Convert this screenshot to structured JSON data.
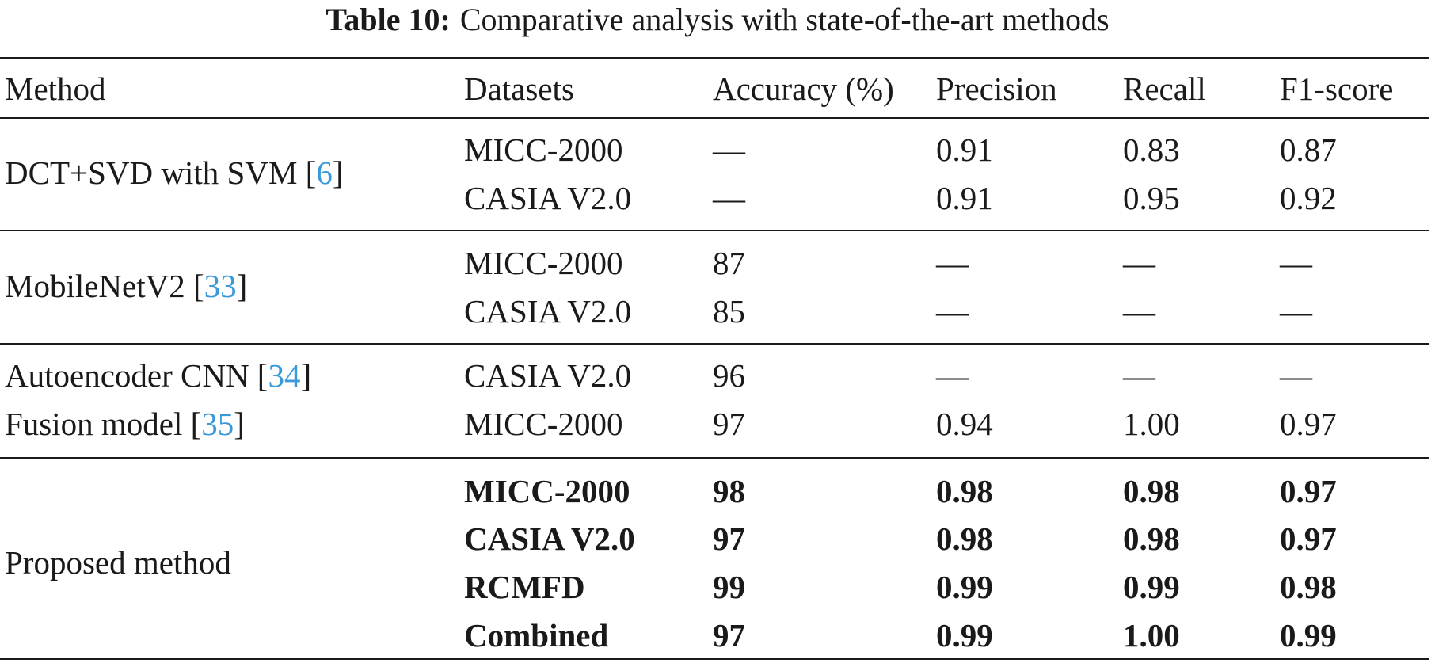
{
  "caption": {
    "label": "Table 10:",
    "text": "Comparative analysis with state-of-the-art methods"
  },
  "header": {
    "method": "Method",
    "datasets": "Datasets",
    "accuracy": "Accuracy (%)",
    "precision": "Precision",
    "recall": "Recall",
    "f1": "F1-score"
  },
  "groups": [
    {
      "method_name": "DCT+SVD with SVM [",
      "citation": "6",
      "method_suffix": "]",
      "rows": [
        {
          "dataset": "MICC-2000",
          "accuracy": "—",
          "precision": "0.91",
          "recall": "0.83",
          "f1": "0.87"
        },
        {
          "dataset": "CASIA V2.0",
          "accuracy": "—",
          "precision": "0.91",
          "recall": "0.95",
          "f1": "0.92"
        }
      ]
    },
    {
      "method_name": "MobileNetV2 [",
      "citation": "33",
      "method_suffix": "]",
      "rows": [
        {
          "dataset": "MICC-2000",
          "accuracy": "87",
          "precision": "—",
          "recall": "—",
          "f1": "—"
        },
        {
          "dataset": "CASIA V2.0",
          "accuracy": "85",
          "precision": "—",
          "recall": "—",
          "f1": "—"
        }
      ]
    },
    {
      "rows": [
        {
          "method_name": "Autoencoder CNN [",
          "citation": "34",
          "method_suffix": "]",
          "dataset": "CASIA V2.0",
          "accuracy": "96",
          "precision": "—",
          "recall": "—",
          "f1": "—"
        },
        {
          "method_name": "Fusion model [",
          "citation": "35",
          "method_suffix": "]",
          "dataset": "MICC-2000",
          "accuracy": "97",
          "precision": "0.94",
          "recall": "1.00",
          "f1": "0.97"
        }
      ]
    },
    {
      "method_name": "Proposed method",
      "rows": [
        {
          "dataset": "MICC-2000",
          "accuracy": "98",
          "precision": "0.98",
          "recall": "0.98",
          "f1": "0.97"
        },
        {
          "dataset": "CASIA V2.0",
          "accuracy": "97",
          "precision": "0.98",
          "recall": "0.98",
          "f1": "0.97"
        },
        {
          "dataset": "RCMFD",
          "accuracy": "99",
          "precision": "0.99",
          "recall": "0.99",
          "f1": "0.98"
        },
        {
          "dataset": "Combined",
          "accuracy": "97",
          "precision": "0.99",
          "recall": "1.00",
          "f1": "0.99"
        }
      ]
    }
  ]
}
